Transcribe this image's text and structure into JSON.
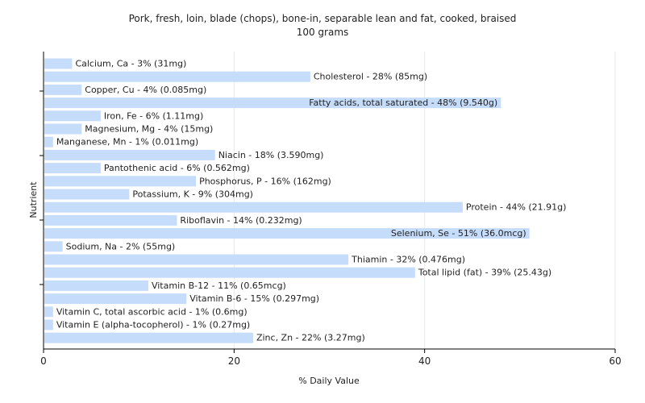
{
  "chart_data": {
    "type": "bar",
    "orientation": "horizontal",
    "title": "Pork, fresh, loin, blade (chops), bone-in, separable lean and fat, cooked, braised",
    "subtitle": "100 grams",
    "xlabel": "% Daily Value",
    "ylabel": "Nutrient",
    "xlim": [
      0,
      60
    ],
    "xticks": [
      0,
      20,
      40,
      60
    ],
    "grid": true,
    "bar_color": "#c6dcfb",
    "categories": [
      "Calcium, Ca",
      "Cholesterol",
      "Copper, Cu",
      "Fatty acids, total saturated",
      "Iron, Fe",
      "Magnesium, Mg",
      "Manganese, Mn",
      "Niacin",
      "Pantothenic acid",
      "Phosphorus, P",
      "Potassium, K",
      "Protein",
      "Riboflavin",
      "Selenium, Se",
      "Sodium, Na",
      "Thiamin",
      "Total lipid (fat)",
      "Vitamin B-12",
      "Vitamin B-6",
      "Vitamin C, total ascorbic acid",
      "Vitamin E (alpha-tocopherol)",
      "Zinc, Zn"
    ],
    "values": [
      3,
      28,
      4,
      48,
      6,
      4,
      1,
      18,
      6,
      16,
      9,
      44,
      14,
      51,
      2,
      32,
      39,
      11,
      15,
      1,
      1,
      22
    ],
    "labels": [
      "Calcium, Ca - 3% (31mg)",
      "Cholesterol - 28% (85mg)",
      "Copper, Cu - 4% (0.085mg)",
      "Fatty acids, total saturated - 48% (9.540g)",
      "Iron, Fe - 6% (1.11mg)",
      "Magnesium, Mg - 4% (15mg)",
      "Manganese, Mn - 1% (0.011mg)",
      "Niacin - 18% (3.590mg)",
      "Pantothenic acid - 6% (0.562mg)",
      "Phosphorus, P - 16% (162mg)",
      "Potassium, K - 9% (304mg)",
      "Protein - 44% (21.91g)",
      "Riboflavin - 14% (0.232mg)",
      "Selenium, Se - 51% (36.0mcg)",
      "Sodium, Na - 2% (55mg)",
      "Thiamin - 32% (0.476mg)",
      "Total lipid (fat) - 39% (25.43g)",
      "Vitamin B-12 - 11% (0.65mcg)",
      "Vitamin B-6 - 15% (0.297mg)",
      "Vitamin C, total ascorbic acid - 1% (0.6mg)",
      "Vitamin E (alpha-tocopherol) - 1% (0.27mg)",
      "Zinc, Zn - 22% (3.27mg)"
    ]
  }
}
